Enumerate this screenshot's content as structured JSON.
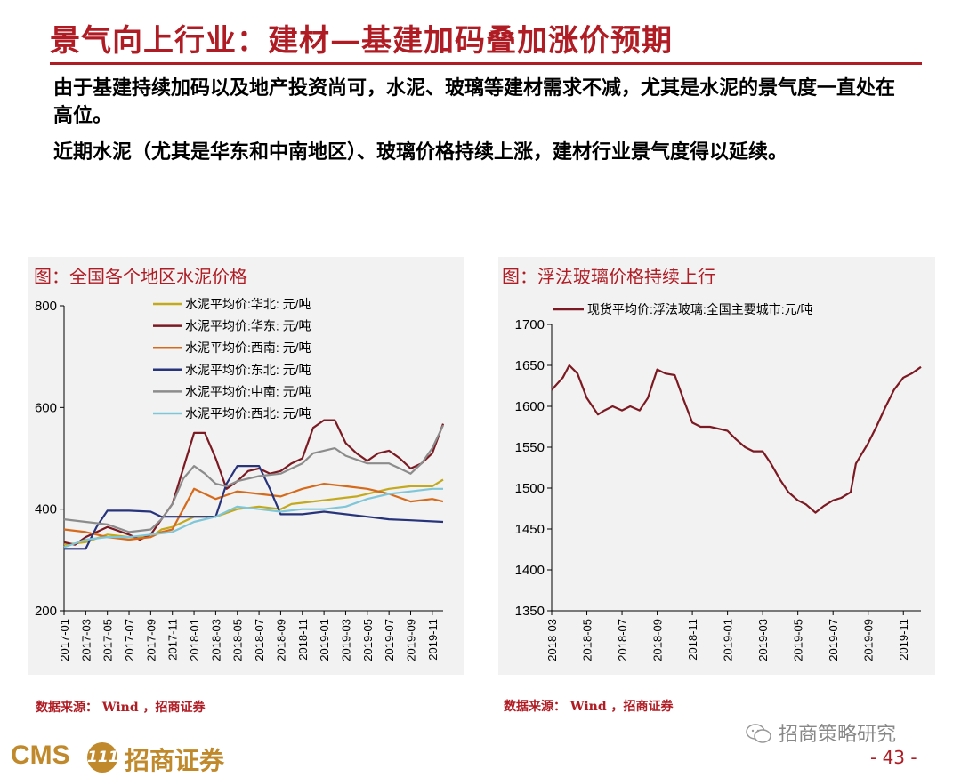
{
  "header": {
    "title": "景气向上行业：建材—基建加码叠加涨价预期",
    "para1": "由于基建持续加码以及地产投资尚可，水泥、玻璃等建材需求不减，尤其是水泥的景气度一直处在高位。",
    "para2": "近期水泥（尤其是华东和中南地区）、玻璃价格持续上涨，建材行业景气度得以延续。"
  },
  "left_panel": {
    "title": "图：全国各个地区水泥价格",
    "source": "数据来源： Wind ，招商证券"
  },
  "right_panel": {
    "title": "图：浮法玻璃价格持续上行",
    "source": "数据来源： Wind ，招商证券"
  },
  "footer": {
    "logo_text": "CMS",
    "logo_mark": "111",
    "logo_cn": "招商证券",
    "wechat_icon": "wechat-icon",
    "wechat_name": "招商策略研究",
    "page_number": "- 43 -"
  },
  "chart_data": [
    {
      "type": "line",
      "ylim": [
        200,
        800
      ],
      "yticks": [
        200,
        400,
        600,
        800
      ],
      "x_ticks": [
        "2017-01",
        "2017-03",
        "2017-05",
        "2017-07",
        "2017-09",
        "2017-11",
        "2018-01",
        "2018-03",
        "2018-05",
        "2018-07",
        "2018-09",
        "2018-11",
        "2019-01",
        "2019-03",
        "2019-05",
        "2019-07",
        "2019-09",
        "2019-11"
      ],
      "x_range": [
        "2017-01",
        "2019-12"
      ],
      "legend_position": "top-center",
      "grid": false,
      "series": [
        {
          "name": "水泥平均价:华北: 元/吨",
          "color": "#c3a91e",
          "points": [
            [
              "2017-01",
              330
            ],
            [
              "2017-03",
              335
            ],
            [
              "2017-05",
              350
            ],
            [
              "2017-07",
              345
            ],
            [
              "2017-09",
              345
            ],
            [
              "2017-10",
              360
            ],
            [
              "2017-11",
              365
            ],
            [
              "2017-12",
              375
            ],
            [
              "2018-01",
              385
            ],
            [
              "2018-03",
              385
            ],
            [
              "2018-05",
              400
            ],
            [
              "2018-07",
              405
            ],
            [
              "2018-09",
              400
            ],
            [
              "2018-10",
              410
            ],
            [
              "2018-12",
              415
            ],
            [
              "2019-02",
              420
            ],
            [
              "2019-04",
              425
            ],
            [
              "2019-06",
              435
            ],
            [
              "2019-07",
              440
            ],
            [
              "2019-09",
              445
            ],
            [
              "2019-11",
              445
            ],
            [
              "2019-12",
              458
            ]
          ]
        },
        {
          "name": "水泥平均价:华东: 元/吨",
          "color": "#7b1a22",
          "points": [
            [
              "2017-01",
              335
            ],
            [
              "2017-02",
              330
            ],
            [
              "2017-03",
              345
            ],
            [
              "2017-05",
              365
            ],
            [
              "2017-07",
              350
            ],
            [
              "2017-08",
              340
            ],
            [
              "2017-09",
              350
            ],
            [
              "2017-10",
              380
            ],
            [
              "2017-11",
              410
            ],
            [
              "2017-12",
              480
            ],
            [
              "2018-01",
              550
            ],
            [
              "2018-02",
              550
            ],
            [
              "2018-03",
              500
            ],
            [
              "2018-04",
              440
            ],
            [
              "2018-05",
              455
            ],
            [
              "2018-06",
              475
            ],
            [
              "2018-07",
              480
            ],
            [
              "2018-08",
              470
            ],
            [
              "2018-09",
              475
            ],
            [
              "2018-10",
              490
            ],
            [
              "2018-11",
              500
            ],
            [
              "2018-12",
              560
            ],
            [
              "2019-01",
              575
            ],
            [
              "2019-02",
              575
            ],
            [
              "2019-03",
              530
            ],
            [
              "2019-04",
              510
            ],
            [
              "2019-05",
              495
            ],
            [
              "2019-06",
              510
            ],
            [
              "2019-07",
              515
            ],
            [
              "2019-08",
              500
            ],
            [
              "2019-09",
              480
            ],
            [
              "2019-10",
              490
            ],
            [
              "2019-11",
              510
            ],
            [
              "2019-12",
              568
            ]
          ]
        },
        {
          "name": "水泥平均价:西南: 元/吨",
          "color": "#d66a1a",
          "points": [
            [
              "2017-01",
              360
            ],
            [
              "2017-03",
              355
            ],
            [
              "2017-05",
              345
            ],
            [
              "2017-07",
              340
            ],
            [
              "2017-09",
              345
            ],
            [
              "2017-10",
              355
            ],
            [
              "2017-11",
              360
            ],
            [
              "2017-12",
              400
            ],
            [
              "2018-01",
              440
            ],
            [
              "2018-02",
              430
            ],
            [
              "2018-03",
              420
            ],
            [
              "2018-05",
              435
            ],
            [
              "2018-07",
              430
            ],
            [
              "2018-09",
              425
            ],
            [
              "2018-11",
              440
            ],
            [
              "2019-01",
              450
            ],
            [
              "2019-03",
              445
            ],
            [
              "2019-05",
              440
            ],
            [
              "2019-07",
              430
            ],
            [
              "2019-09",
              415
            ],
            [
              "2019-11",
              420
            ],
            [
              "2019-12",
              415
            ]
          ]
        },
        {
          "name": "水泥平均价:东北: 元/吨",
          "color": "#27337a",
          "points": [
            [
              "2017-01",
              322
            ],
            [
              "2017-03",
              322
            ],
            [
              "2017-04",
              365
            ],
            [
              "2017-05",
              397
            ],
            [
              "2017-07",
              397
            ],
            [
              "2017-09",
              395
            ],
            [
              "2017-10",
              385
            ],
            [
              "2017-12",
              385
            ],
            [
              "2018-02",
              385
            ],
            [
              "2018-03",
              385
            ],
            [
              "2018-04",
              450
            ],
            [
              "2018-05",
              485
            ],
            [
              "2018-07",
              485
            ],
            [
              "2018-08",
              440
            ],
            [
              "2018-09",
              390
            ],
            [
              "2018-11",
              390
            ],
            [
              "2019-01",
              395
            ],
            [
              "2019-03",
              390
            ],
            [
              "2019-05",
              385
            ],
            [
              "2019-07",
              380
            ],
            [
              "2019-09",
              378
            ],
            [
              "2019-12",
              375
            ]
          ]
        },
        {
          "name": "水泥平均价:中南: 元/吨",
          "color": "#8c8c8c",
          "points": [
            [
              "2017-01",
              380
            ],
            [
              "2017-03",
              375
            ],
            [
              "2017-05",
              370
            ],
            [
              "2017-07",
              355
            ],
            [
              "2017-09",
              360
            ],
            [
              "2017-10",
              380
            ],
            [
              "2017-11",
              410
            ],
            [
              "2017-12",
              460
            ],
            [
              "2018-01",
              485
            ],
            [
              "2018-02",
              470
            ],
            [
              "2018-03",
              450
            ],
            [
              "2018-04",
              445
            ],
            [
              "2018-05",
              455
            ],
            [
              "2018-07",
              465
            ],
            [
              "2018-09",
              470
            ],
            [
              "2018-10",
              480
            ],
            [
              "2018-11",
              490
            ],
            [
              "2018-12",
              510
            ],
            [
              "2019-01",
              515
            ],
            [
              "2019-02",
              520
            ],
            [
              "2019-03",
              505
            ],
            [
              "2019-05",
              490
            ],
            [
              "2019-07",
              490
            ],
            [
              "2019-08",
              480
            ],
            [
              "2019-09",
              470
            ],
            [
              "2019-10",
              490
            ],
            [
              "2019-11",
              520
            ],
            [
              "2019-12",
              565
            ]
          ]
        },
        {
          "name": "水泥平均价:西北: 元/吨",
          "color": "#7fc7d8",
          "points": [
            [
              "2017-01",
              325
            ],
            [
              "2017-03",
              340
            ],
            [
              "2017-05",
              345
            ],
            [
              "2017-07",
              345
            ],
            [
              "2017-09",
              350
            ],
            [
              "2017-11",
              355
            ],
            [
              "2018-01",
              375
            ],
            [
              "2018-03",
              385
            ],
            [
              "2018-05",
              405
            ],
            [
              "2018-07",
              400
            ],
            [
              "2018-09",
              395
            ],
            [
              "2018-11",
              400
            ],
            [
              "2019-01",
              400
            ],
            [
              "2019-03",
              405
            ],
            [
              "2019-05",
              420
            ],
            [
              "2019-07",
              430
            ],
            [
              "2019-09",
              435
            ],
            [
              "2019-11",
              440
            ],
            [
              "2019-12",
              440
            ]
          ]
        }
      ]
    },
    {
      "type": "line",
      "ylim": [
        1350,
        1700
      ],
      "yticks": [
        1350,
        1400,
        1450,
        1500,
        1550,
        1600,
        1650,
        1700
      ],
      "x_ticks": [
        "2018-03",
        "2018-05",
        "2018-07",
        "2018-09",
        "2018-11",
        "2019-01",
        "2019-03",
        "2019-05",
        "2019-07",
        "2019-09",
        "2019-11"
      ],
      "x_range": [
        "2018-03",
        "2019-12"
      ],
      "legend_position": "top-left",
      "grid": false,
      "series": [
        {
          "name": "现货平均价:浮法玻璃:全国主要城市:元/吨",
          "color": "#7b1a22",
          "points": [
            [
              "2018-03",
              1620
            ],
            [
              "2018-03-20",
              1635
            ],
            [
              "2018-04",
              1650
            ],
            [
              "2018-04-15",
              1640
            ],
            [
              "2018-05",
              1610
            ],
            [
              "2018-05-20",
              1590
            ],
            [
              "2018-06",
              1595
            ],
            [
              "2018-06-15",
              1600
            ],
            [
              "2018-07",
              1595
            ],
            [
              "2018-07-15",
              1600
            ],
            [
              "2018-08",
              1595
            ],
            [
              "2018-08-15",
              1610
            ],
            [
              "2018-09",
              1645
            ],
            [
              "2018-09-15",
              1640
            ],
            [
              "2018-10",
              1638
            ],
            [
              "2018-10-15",
              1610
            ],
            [
              "2018-11",
              1580
            ],
            [
              "2018-11-15",
              1575
            ],
            [
              "2018-12",
              1575
            ],
            [
              "2019-01",
              1570
            ],
            [
              "2019-01-15",
              1560
            ],
            [
              "2019-02",
              1550
            ],
            [
              "2019-02-15",
              1545
            ],
            [
              "2019-03",
              1545
            ],
            [
              "2019-03-15",
              1530
            ],
            [
              "2019-04",
              1510
            ],
            [
              "2019-04-15",
              1495
            ],
            [
              "2019-05",
              1485
            ],
            [
              "2019-05-15",
              1480
            ],
            [
              "2019-06",
              1470
            ],
            [
              "2019-06-15",
              1478
            ],
            [
              "2019-07",
              1485
            ],
            [
              "2019-07-15",
              1488
            ],
            [
              "2019-08",
              1495
            ],
            [
              "2019-08-10",
              1530
            ],
            [
              "2019-09",
              1555
            ],
            [
              "2019-09-15",
              1575
            ],
            [
              "2019-10",
              1600
            ],
            [
              "2019-10-15",
              1620
            ],
            [
              "2019-11",
              1635
            ],
            [
              "2019-11-15",
              1640
            ],
            [
              "2019-12",
              1648
            ]
          ]
        }
      ]
    }
  ]
}
